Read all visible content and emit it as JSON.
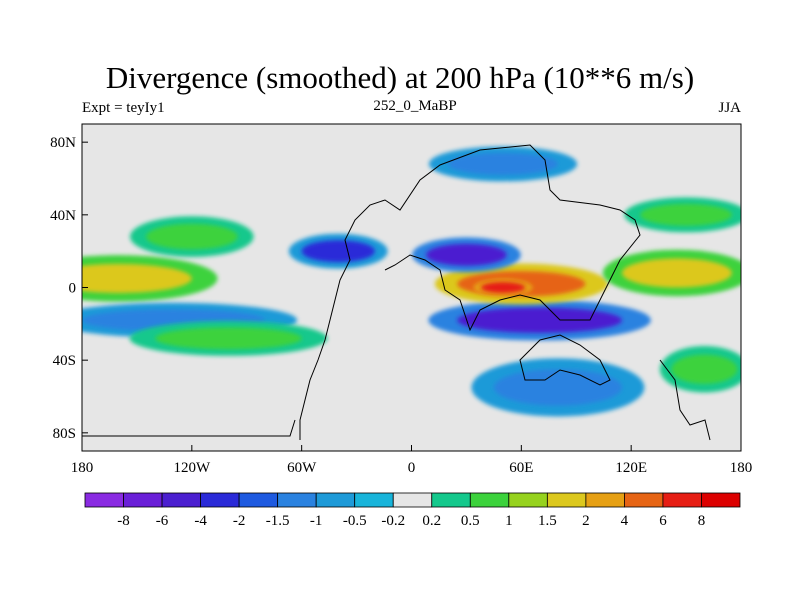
{
  "chart_data": {
    "type": "heatmap",
    "title": "Divergence (smoothed) at 200 hPa (10**6 m/s)",
    "left_label": "Expt = teyIy1",
    "center_label": "252_0_MaBP",
    "right_label": "JJA",
    "x_ticks": [
      {
        "lon": -180,
        "label": "180"
      },
      {
        "lon": -120,
        "label": "120W"
      },
      {
        "lon": -60,
        "label": "60W"
      },
      {
        "lon": 0,
        "label": "0"
      },
      {
        "lon": 60,
        "label": "60E"
      },
      {
        "lon": 120,
        "label": "120E"
      },
      {
        "lon": 180,
        "label": "180"
      }
    ],
    "y_ticks": [
      {
        "lat": 80,
        "label": "80N"
      },
      {
        "lat": 40,
        "label": "40N"
      },
      {
        "lat": 0,
        "label": "0"
      },
      {
        "lat": -40,
        "label": "40S"
      },
      {
        "lat": -80,
        "label": "80S"
      }
    ],
    "xlim": [
      -180,
      180
    ],
    "ylim": [
      -90,
      90
    ],
    "colorbar_labels": [
      "-8",
      "-6",
      "-4",
      "-2",
      "-1.5",
      "-1",
      "-0.5",
      "-0.2",
      "0.2",
      "0.5",
      "1",
      "1.5",
      "2",
      "4",
      "6",
      "8"
    ],
    "colorbar_colors": [
      "#8a2be2",
      "#6a1fd8",
      "#4b1fd0",
      "#2a2ad8",
      "#1e5ae0",
      "#2a82e0",
      "#1e9ad8",
      "#18b4da",
      "#e6e6e6",
      "#14c88c",
      "#3cd23c",
      "#96d21e",
      "#dcc81e",
      "#e6a014",
      "#e66414",
      "#e61e14",
      "#dc0000"
    ],
    "regions": [
      {
        "name": "tropical-divergence-east-pacific",
        "value": 2,
        "lon": -160,
        "lat": 5,
        "rx": 40,
        "ry": 8
      },
      {
        "name": "tropical-divergence-west-pacific",
        "value": 2,
        "lon": 145,
        "lat": 8,
        "rx": 30,
        "ry": 8
      },
      {
        "name": "tropical-divergence-africa-asia",
        "value": 6,
        "lon": 60,
        "lat": 2,
        "rx": 35,
        "ry": 7
      },
      {
        "name": "tropical-divergence-core",
        "value": 8,
        "lon": 50,
        "lat": 0,
        "rx": 12,
        "ry": 3
      },
      {
        "name": "southern-convergence-band",
        "value": -4,
        "lon": 70,
        "lat": -18,
        "rx": 45,
        "ry": 7
      },
      {
        "name": "southern-convergence-west",
        "value": -1,
        "lon": -130,
        "lat": -18,
        "rx": 50,
        "ry": 6
      },
      {
        "name": "northern-convergence-central",
        "value": -4,
        "lon": 30,
        "lat": 18,
        "rx": 22,
        "ry": 6
      },
      {
        "name": "northern-convergence-atlantic",
        "value": -2,
        "lon": -40,
        "lat": 20,
        "rx": 20,
        "ry": 6
      },
      {
        "name": "north-pacific-divergence",
        "value": 1,
        "lon": -120,
        "lat": 28,
        "rx": 25,
        "ry": 7
      },
      {
        "name": "southern-divergence-band",
        "value": 1,
        "lon": -100,
        "lat": -28,
        "rx": 40,
        "ry": 6
      },
      {
        "name": "arctic-convergence",
        "value": -1,
        "lon": 50,
        "lat": 68,
        "rx": 30,
        "ry": 6
      },
      {
        "name": "south-pacific-divergence",
        "value": 1,
        "lon": 160,
        "lat": -45,
        "rx": 18,
        "ry": 8
      },
      {
        "name": "southern-ocean-convergence",
        "value": -1,
        "lon": 80,
        "lat": -55,
        "rx": 35,
        "ry": 10
      },
      {
        "name": "extratropical-north-divergence",
        "value": 1,
        "lon": 150,
        "lat": 40,
        "rx": 25,
        "ry": 6
      }
    ]
  }
}
